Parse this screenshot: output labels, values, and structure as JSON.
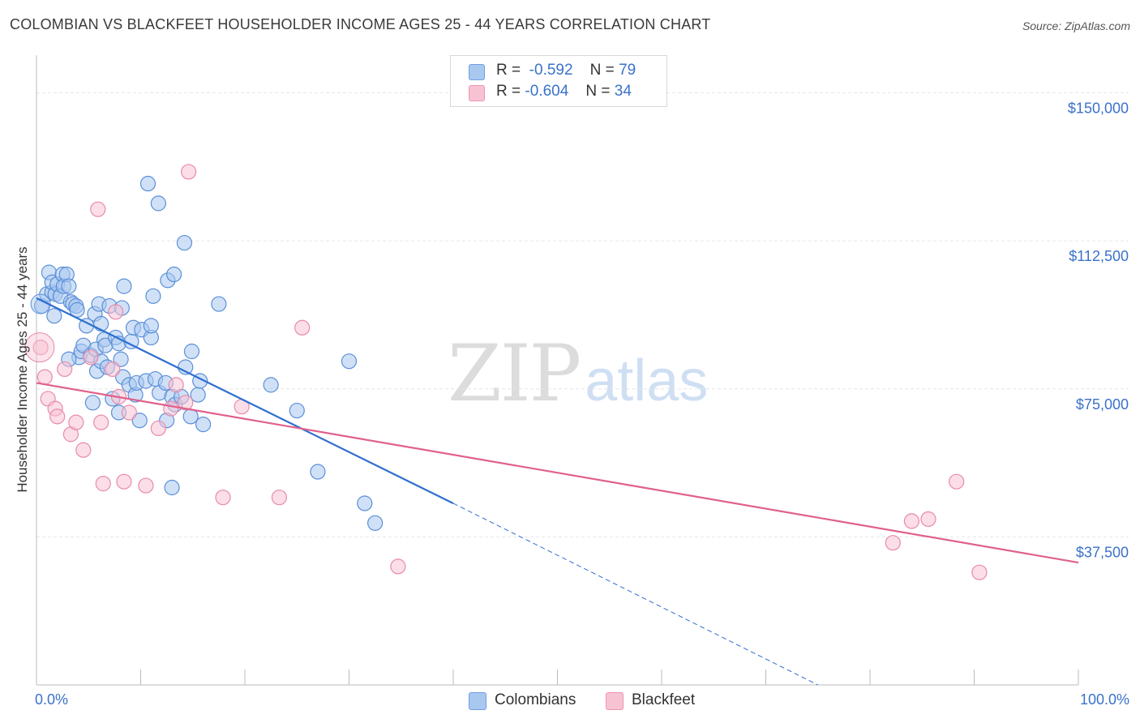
{
  "header": {
    "title": "COLOMBIAN VS BLACKFEET HOUSEHOLDER INCOME AGES 25 - 44 YEARS CORRELATION CHART",
    "source": "Source: ZipAtlas.com"
  },
  "legend_stats": [
    {
      "r_label": "R =",
      "r_value": "-0.592",
      "n_label": "N =",
      "n_value": "79",
      "color": "#a9c8f0",
      "border": "#6f9ee0"
    },
    {
      "r_label": "R =",
      "r_value": "-0.604",
      "n_label": "N =",
      "n_value": "34",
      "color": "#f7c3d3",
      "border": "#ec95b2"
    }
  ],
  "watermark": {
    "zip": "ZIP",
    "atlas": "atlas"
  },
  "colors": {
    "blue_fill": "#a9c8f0",
    "blue_stroke": "#5b8fd8",
    "blue_line": "#2f6fd0",
    "pink_fill": "#f7c3d3",
    "pink_stroke": "#e88aaa",
    "pink_line": "#e0608c",
    "grid": "#e6e6e6",
    "tick_label": "#3a72c9"
  },
  "chart_data": {
    "type": "scatter",
    "title": "COLOMBIAN VS BLACKFEET HOUSEHOLDER INCOME AGES 25 - 44 YEARS CORRELATION CHART",
    "xlabel": "",
    "ylabel": "Householder Income Ages 25 - 44 years",
    "xlim": [
      0,
      100
    ],
    "ylim": [
      0,
      157500
    ],
    "x_tick_labels": [
      "0.0%",
      "100.0%"
    ],
    "y_ticks": [
      37500,
      75000,
      112500,
      150000
    ],
    "y_tick_labels": [
      "$37,500",
      "$75,000",
      "$112,500",
      "$150,000"
    ],
    "grid": true,
    "legend": "bottom",
    "series": [
      {
        "name": "Colombians",
        "points": [
          [
            0.5,
            96000
          ],
          [
            1.0,
            99000
          ],
          [
            1.2,
            104500
          ],
          [
            1.5,
            99500
          ],
          [
            1.5,
            102000
          ],
          [
            1.7,
            93500
          ],
          [
            1.8,
            99000
          ],
          [
            2.0,
            101500
          ],
          [
            2.3,
            98500
          ],
          [
            2.5,
            104000
          ],
          [
            2.6,
            101000
          ],
          [
            2.9,
            104000
          ],
          [
            3.1,
            101000
          ],
          [
            3.3,
            97000
          ],
          [
            3.5,
            96500
          ],
          [
            3.8,
            96000
          ],
          [
            3.9,
            95000
          ],
          [
            4.1,
            83000
          ],
          [
            4.3,
            84500
          ],
          [
            4.5,
            86000
          ],
          [
            4.8,
            91000
          ],
          [
            5.2,
            83500
          ],
          [
            5.4,
            71500
          ],
          [
            5.6,
            94000
          ],
          [
            5.7,
            85000
          ],
          [
            5.8,
            79500
          ],
          [
            6.0,
            96500
          ],
          [
            6.2,
            82000
          ],
          [
            6.5,
            87500
          ],
          [
            6.6,
            86000
          ],
          [
            6.8,
            80500
          ],
          [
            7.0,
            96000
          ],
          [
            7.3,
            72500
          ],
          [
            7.6,
            88000
          ],
          [
            7.9,
            86500
          ],
          [
            7.9,
            69000
          ],
          [
            8.1,
            82500
          ],
          [
            8.3,
            78000
          ],
          [
            8.4,
            101000
          ],
          [
            8.9,
            76000
          ],
          [
            9.1,
            87000
          ],
          [
            9.3,
            90500
          ],
          [
            9.5,
            73500
          ],
          [
            9.6,
            76500
          ],
          [
            9.9,
            67000
          ],
          [
            10.1,
            90000
          ],
          [
            10.5,
            77000
          ],
          [
            10.7,
            127000
          ],
          [
            11.0,
            88000
          ],
          [
            11.0,
            91000
          ],
          [
            11.2,
            98500
          ],
          [
            11.4,
            77500
          ],
          [
            11.7,
            122000
          ],
          [
            11.8,
            74000
          ],
          [
            12.4,
            76500
          ],
          [
            12.5,
            67000
          ],
          [
            12.6,
            102500
          ],
          [
            13.0,
            73000
          ],
          [
            13.2,
            104000
          ],
          [
            13.3,
            71000
          ],
          [
            13.9,
            73000
          ],
          [
            14.2,
            112000
          ],
          [
            14.3,
            80500
          ],
          [
            14.8,
            68000
          ],
          [
            14.9,
            84500
          ],
          [
            15.5,
            73500
          ],
          [
            15.7,
            77000
          ],
          [
            16.0,
            66000
          ],
          [
            17.5,
            96500
          ],
          [
            22.5,
            76000
          ],
          [
            25.0,
            69500
          ],
          [
            27.0,
            54000
          ],
          [
            30.0,
            82000
          ],
          [
            31.5,
            46000
          ],
          [
            32.5,
            41000
          ],
          [
            13.0,
            50000
          ],
          [
            6.2,
            91500
          ],
          [
            8.2,
            95500
          ],
          [
            3.1,
            82500
          ]
        ]
      },
      {
        "name": "Blackfeet",
        "points": [
          [
            0.4,
            85500
          ],
          [
            0.8,
            78000
          ],
          [
            1.1,
            72500
          ],
          [
            1.8,
            70000
          ],
          [
            2.0,
            68000
          ],
          [
            2.7,
            80000
          ],
          [
            3.3,
            63500
          ],
          [
            3.8,
            66500
          ],
          [
            4.5,
            59500
          ],
          [
            5.2,
            83000
          ],
          [
            5.9,
            120500
          ],
          [
            6.2,
            66500
          ],
          [
            6.4,
            51000
          ],
          [
            7.3,
            80000
          ],
          [
            7.6,
            94500
          ],
          [
            7.9,
            73000
          ],
          [
            8.4,
            51500
          ],
          [
            8.9,
            69000
          ],
          [
            10.5,
            50500
          ],
          [
            11.7,
            65000
          ],
          [
            12.9,
            70000
          ],
          [
            13.4,
            76000
          ],
          [
            14.3,
            71500
          ],
          [
            14.6,
            130000
          ],
          [
            17.9,
            47500
          ],
          [
            19.7,
            70500
          ],
          [
            23.3,
            47500
          ],
          [
            25.5,
            90500
          ],
          [
            34.7,
            30000
          ],
          [
            82.2,
            36000
          ],
          [
            84.0,
            41500
          ],
          [
            85.6,
            42000
          ],
          [
            88.3,
            51500
          ],
          [
            90.5,
            28500
          ]
        ]
      }
    ],
    "trend_lines": [
      {
        "series": "Colombians",
        "x": [
          0,
          40
        ],
        "y": [
          98000,
          46000
        ],
        "dashed_extension_x": [
          40,
          75
        ],
        "dashed_extension_y": [
          46000,
          0
        ]
      },
      {
        "series": "Blackfeet",
        "x": [
          0,
          100
        ],
        "y": [
          76500,
          31000
        ]
      }
    ]
  }
}
